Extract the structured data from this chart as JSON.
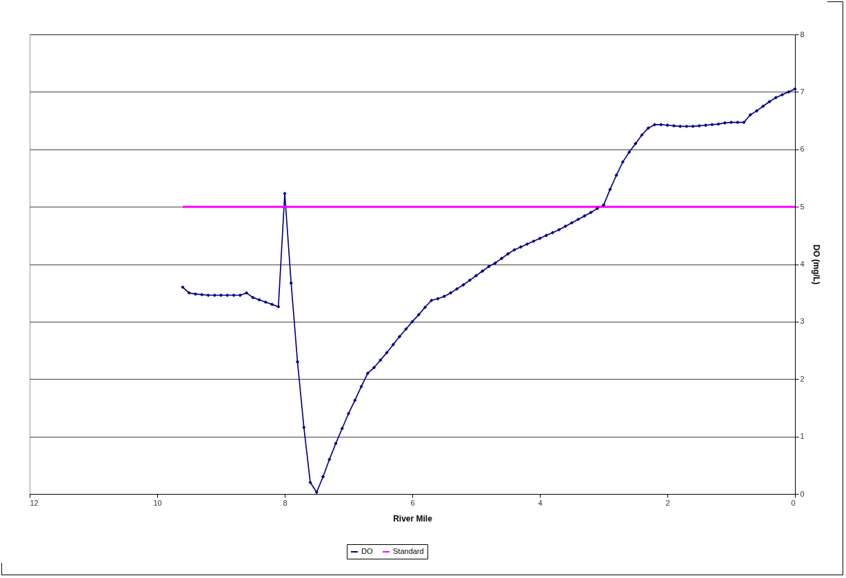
{
  "chart_data": {
    "type": "line",
    "xlabel": "River Mile",
    "ylabel": "DO (mg/L)",
    "xlim": [
      12,
      0
    ],
    "xticks": [
      12,
      10,
      8,
      6,
      4,
      2,
      0
    ],
    "ylim": [
      0,
      8
    ],
    "yticks": [
      0,
      1,
      2,
      3,
      4,
      5,
      6,
      7,
      8
    ],
    "grid": "y",
    "legend": "bottom",
    "series": [
      {
        "name": "DO",
        "color": "#000080",
        "marker": "diamond",
        "x": [
          9.6,
          9.5,
          9.4,
          9.3,
          9.2,
          9.1,
          9.0,
          8.9,
          8.8,
          8.7,
          8.6,
          8.5,
          8.4,
          8.3,
          8.2,
          8.1,
          8.0,
          7.9,
          7.8,
          7.7,
          7.6,
          7.5,
          7.4,
          7.3,
          7.2,
          7.1,
          7.0,
          6.9,
          6.8,
          6.7,
          6.6,
          6.5,
          6.4,
          6.3,
          6.2,
          6.1,
          6.0,
          5.9,
          5.8,
          5.7,
          5.6,
          5.5,
          5.4,
          5.3,
          5.2,
          5.1,
          5.0,
          4.9,
          4.8,
          4.7,
          4.6,
          4.5,
          4.4,
          4.3,
          4.2,
          4.1,
          4.0,
          3.9,
          3.8,
          3.7,
          3.6,
          3.5,
          3.4,
          3.3,
          3.2,
          3.1,
          3.0,
          2.9,
          2.8,
          2.7,
          2.6,
          2.5,
          2.4,
          2.3,
          2.2,
          2.1,
          2.0,
          1.9,
          1.8,
          1.7,
          1.6,
          1.5,
          1.4,
          1.3,
          1.2,
          1.1,
          1.0,
          0.9,
          0.8,
          0.7,
          0.6,
          0.5,
          0.4,
          0.3,
          0.2,
          0.1,
          0.0
        ],
        "values": [
          3.6,
          3.5,
          3.48,
          3.47,
          3.46,
          3.46,
          3.46,
          3.46,
          3.46,
          3.46,
          3.5,
          3.42,
          3.38,
          3.34,
          3.3,
          3.26,
          5.23,
          3.67,
          2.3,
          1.16,
          0.2,
          0.03,
          0.3,
          0.6,
          0.88,
          1.14,
          1.4,
          1.63,
          1.87,
          2.1,
          2.2,
          2.33,
          2.46,
          2.6,
          2.74,
          2.87,
          3.0,
          3.12,
          3.25,
          3.37,
          3.4,
          3.44,
          3.5,
          3.57,
          3.64,
          3.72,
          3.8,
          3.88,
          3.96,
          4.02,
          4.1,
          4.18,
          4.25,
          4.3,
          4.35,
          4.4,
          4.45,
          4.5,
          4.55,
          4.6,
          4.66,
          4.72,
          4.78,
          4.84,
          4.9,
          4.97,
          5.03,
          5.3,
          5.55,
          5.78,
          5.95,
          6.1,
          6.25,
          6.37,
          6.43,
          6.43,
          6.42,
          6.41,
          6.4,
          6.4,
          6.4,
          6.41,
          6.42,
          6.43,
          6.44,
          6.46,
          6.47,
          6.47,
          6.47,
          6.6,
          6.67,
          6.75,
          6.83,
          6.9,
          6.95,
          7.0,
          7.05
        ]
      },
      {
        "name": "Standard",
        "color": "#ff00ff",
        "marker": "none",
        "x": [
          9.6,
          0
        ],
        "values": [
          5,
          5
        ]
      }
    ]
  }
}
